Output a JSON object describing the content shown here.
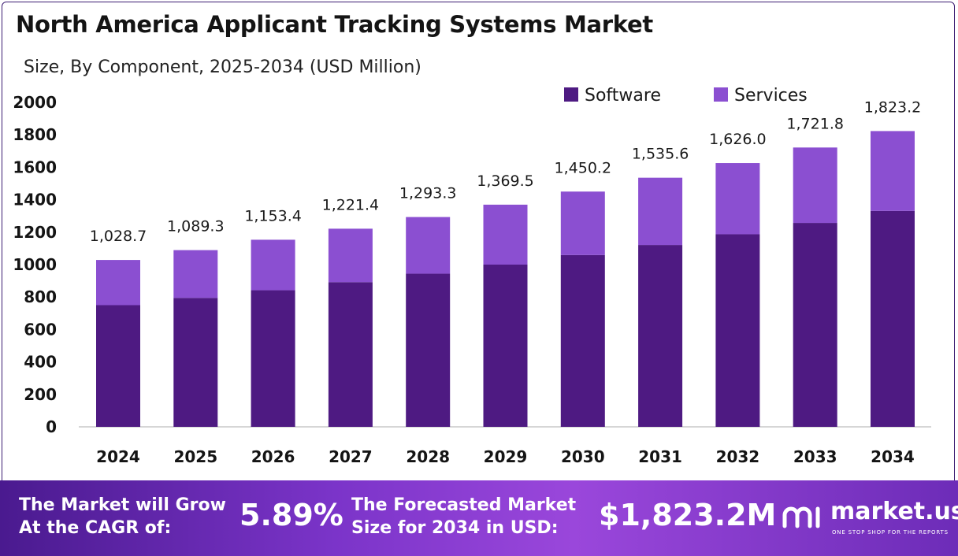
{
  "chart_data": {
    "type": "bar",
    "stacked": true,
    "title": "North America Applicant Tracking Systems Market",
    "subtitle": "Size, By Component, 2025-2034 (USD Million)",
    "categories": [
      "2024",
      "2025",
      "2026",
      "2027",
      "2028",
      "2029",
      "2030",
      "2031",
      "2032",
      "2033",
      "2034"
    ],
    "series": [
      {
        "name": "Software",
        "color": "#4e1a82",
        "values": [
          750,
          795,
          842,
          892,
          944,
          1000,
          1059,
          1121,
          1187,
          1257,
          1331
        ]
      },
      {
        "name": "Services",
        "color": "#8b4fd1",
        "values": [
          278.7,
          294.3,
          311.4,
          329.4,
          349.3,
          369.5,
          391.2,
          414.6,
          439.0,
          464.8,
          492.2
        ]
      }
    ],
    "totals": [
      "1,028.7",
      "1,089.3",
      "1,153.4",
      "1,221.4",
      "1,293.3",
      "1,369.5",
      "1,450.2",
      "1,535.6",
      "1,626.0",
      "1,721.8",
      "1,823.2"
    ],
    "yticks": [
      0,
      200,
      400,
      600,
      800,
      1000,
      1200,
      1400,
      1600,
      1800,
      2000
    ],
    "ylim": [
      0,
      2000
    ],
    "grid": false,
    "legend_position": "top-right"
  },
  "footer": {
    "cagr_line1": "The Market will Grow",
    "cagr_line2": "At the CAGR of:",
    "cagr_value": "5.89%",
    "forecast_line1": "The Forecasted Market",
    "forecast_line2": "Size for 2034 in USD:",
    "forecast_value": "$1,823.2M",
    "brand_name": "market.us",
    "brand_tagline": "ONE STOP SHOP FOR THE REPORTS"
  }
}
